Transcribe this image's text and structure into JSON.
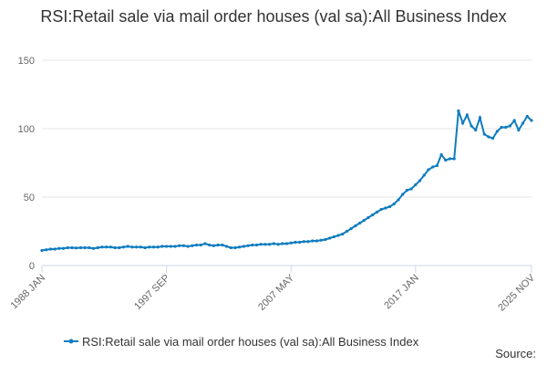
{
  "chart_data": {
    "type": "line",
    "title": "RSI:Retail sale via mail order houses (val sa):All Business Index",
    "source_label": "Source:",
    "categories": [
      "1988 JAN",
      null,
      null,
      null,
      null,
      null,
      null,
      null,
      null,
      null,
      null,
      null,
      null,
      null,
      null,
      null,
      null,
      null,
      null,
      null,
      null,
      null,
      null,
      null,
      null,
      null,
      null,
      null,
      null,
      "1997 SEP",
      null,
      null,
      null,
      null,
      null,
      null,
      null,
      null,
      null,
      null,
      null,
      null,
      null,
      null,
      null,
      null,
      null,
      null,
      null,
      null,
      null,
      null,
      null,
      null,
      null,
      null,
      null,
      null,
      "2007 MAY",
      null,
      null,
      null,
      null,
      null,
      null,
      null,
      null,
      null,
      null,
      null,
      null,
      null,
      null,
      null,
      null,
      null,
      null,
      null,
      null,
      null,
      null,
      null,
      null,
      null,
      null,
      null,
      null,
      "2017 JAN",
      null,
      null,
      null,
      null,
      null,
      null,
      null,
      null,
      null,
      null,
      null,
      null,
      null,
      null,
      null,
      null,
      null,
      null,
      null,
      null,
      null,
      null,
      null,
      null,
      null,
      null,
      "2025 NOV"
    ],
    "series": [
      {
        "name": "RSI:Retail sale via mail order houses (val sa):All Business Index",
        "color": "#0f7cbf",
        "values": [
          11,
          11.5,
          12,
          12,
          12.5,
          12.5,
          13,
          13,
          12.8,
          13,
          13,
          13,
          12.5,
          13,
          13.5,
          13.5,
          13.5,
          13,
          13,
          13.5,
          14,
          13.5,
          13.5,
          13.5,
          13,
          13.5,
          13.5,
          13.5,
          14,
          14,
          14,
          14,
          14.5,
          14.5,
          14,
          14.5,
          15,
          15,
          16,
          15,
          14.5,
          15,
          15,
          14,
          13,
          13,
          13.5,
          14,
          14.5,
          15,
          15,
          15.5,
          15.5,
          15.5,
          16,
          15.5,
          16,
          16,
          16.5,
          17,
          17,
          17.5,
          17.5,
          18,
          18,
          18.5,
          19,
          20,
          21,
          22,
          23,
          25,
          27,
          29,
          31,
          33,
          35,
          37,
          39,
          41,
          42,
          43,
          45,
          48,
          52,
          55,
          56,
          59,
          62,
          66,
          70,
          72,
          73,
          81,
          77,
          78,
          78,
          113,
          104,
          110,
          102,
          99,
          108,
          96,
          94,
          93,
          98,
          101,
          101,
          102,
          106,
          99,
          104,
          109,
          106
        ]
      }
    ],
    "ylim": [
      0,
      150
    ],
    "yticks": [
      0,
      50,
      100,
      150
    ],
    "grid": true,
    "legend": "bottom"
  }
}
